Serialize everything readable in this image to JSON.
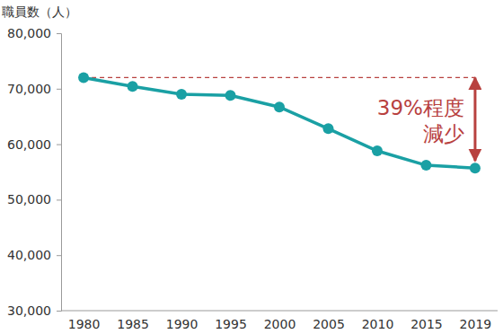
{
  "chart_data": {
    "type": "line",
    "y_label": "職員数（人）",
    "categories": [
      "1980",
      "1985",
      "1990",
      "1995",
      "2000",
      "2005",
      "2010",
      "2015",
      "2019"
    ],
    "values": [
      72000,
      70400,
      69000,
      68800,
      66700,
      62800,
      58800,
      56200,
      55700
    ],
    "color": "#1aa0a4",
    "marker": "circle",
    "line_style": "solid",
    "grid": false,
    "ylim": [
      30000,
      80000
    ],
    "yticks": [
      {
        "value": 30000,
        "label": "30,000"
      },
      {
        "value": 40000,
        "label": "40,000"
      },
      {
        "value": 50000,
        "label": "50,000"
      },
      {
        "value": 60000,
        "label": "60,000"
      },
      {
        "value": 70000,
        "label": "70,000"
      },
      {
        "value": 80000,
        "label": "80,000"
      }
    ],
    "annotation": {
      "lines": [
        "39%程度",
        "減少"
      ],
      "color": "#b8413f"
    }
  }
}
